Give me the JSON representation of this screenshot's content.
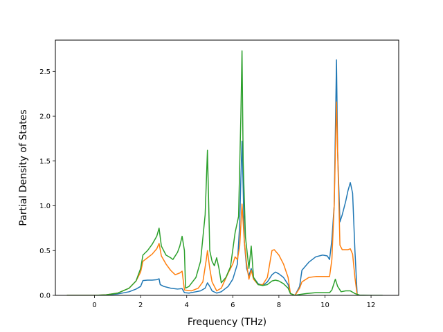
{
  "chart_data": {
    "type": "line",
    "title": "",
    "xlabel": "Frequency (THz)",
    "ylabel": "Partial Density of States",
    "xlim": [
      -1.7,
      13.2
    ],
    "ylim": [
      0,
      2.85
    ],
    "xticks": [
      0,
      2,
      4,
      6,
      8,
      10,
      12
    ],
    "xtick_labels": [
      "0",
      "2",
      "4",
      "6",
      "8",
      "10",
      "12"
    ],
    "yticks": [
      0.0,
      0.5,
      1.0,
      1.5,
      2.0,
      2.5
    ],
    "ytick_labels": [
      "0.0",
      "0.5",
      "1.0",
      "1.5",
      "2.0",
      "2.5"
    ],
    "grid": false,
    "legend": "none",
    "series": [
      {
        "color": "#1f77b4",
        "points": [
          [
            -1.2,
            0
          ],
          [
            0,
            0
          ],
          [
            0.5,
            0.004
          ],
          [
            1,
            0.015
          ],
          [
            1.5,
            0.04
          ],
          [
            1.8,
            0.07
          ],
          [
            2.0,
            0.1
          ],
          [
            2.1,
            0.165
          ],
          [
            2.3,
            0.17
          ],
          [
            2.5,
            0.17
          ],
          [
            2.7,
            0.175
          ],
          [
            2.8,
            0.185
          ],
          [
            2.85,
            0.12
          ],
          [
            3.0,
            0.1
          ],
          [
            3.3,
            0.08
          ],
          [
            3.6,
            0.07
          ],
          [
            3.8,
            0.075
          ],
          [
            3.9,
            0.03
          ],
          [
            4.1,
            0.025
          ],
          [
            4.4,
            0.04
          ],
          [
            4.6,
            0.05
          ],
          [
            4.8,
            0.08
          ],
          [
            4.9,
            0.14
          ],
          [
            5.0,
            0.1
          ],
          [
            5.1,
            0.05
          ],
          [
            5.3,
            0.025
          ],
          [
            5.5,
            0.04
          ],
          [
            5.8,
            0.1
          ],
          [
            6.0,
            0.18
          ],
          [
            6.2,
            0.35
          ],
          [
            6.3,
            0.8
          ],
          [
            6.35,
            1.3
          ],
          [
            6.4,
            1.72
          ],
          [
            6.45,
            1.2
          ],
          [
            6.5,
            0.6
          ],
          [
            6.6,
            0.3
          ],
          [
            6.7,
            0.22
          ],
          [
            6.8,
            0.3
          ],
          [
            6.9,
            0.2
          ],
          [
            7.1,
            0.13
          ],
          [
            7.3,
            0.11
          ],
          [
            7.5,
            0.15
          ],
          [
            7.7,
            0.23
          ],
          [
            7.85,
            0.26
          ],
          [
            8.0,
            0.24
          ],
          [
            8.2,
            0.2
          ],
          [
            8.4,
            0.12
          ],
          [
            8.5,
            0.02
          ],
          [
            8.7,
            0
          ],
          [
            8.9,
            0.1
          ],
          [
            9.0,
            0.28
          ],
          [
            9.3,
            0.37
          ],
          [
            9.6,
            0.43
          ],
          [
            9.9,
            0.45
          ],
          [
            10.1,
            0.44
          ],
          [
            10.2,
            0.4
          ],
          [
            10.3,
            0.62
          ],
          [
            10.4,
            1.0
          ],
          [
            10.45,
            1.8
          ],
          [
            10.5,
            2.63
          ],
          [
            10.55,
            1.6
          ],
          [
            10.65,
            0.82
          ],
          [
            10.75,
            0.9
          ],
          [
            10.9,
            1.05
          ],
          [
            11.0,
            1.17
          ],
          [
            11.1,
            1.26
          ],
          [
            11.2,
            1.14
          ],
          [
            11.3,
            0.5
          ],
          [
            11.4,
            0
          ],
          [
            11.5,
            0
          ]
        ]
      },
      {
        "color": "#ff7f0e",
        "points": [
          [
            -1.2,
            0
          ],
          [
            0,
            0
          ],
          [
            0.5,
            0.006
          ],
          [
            1,
            0.025
          ],
          [
            1.5,
            0.08
          ],
          [
            1.8,
            0.16
          ],
          [
            2.0,
            0.26
          ],
          [
            2.1,
            0.38
          ],
          [
            2.3,
            0.42
          ],
          [
            2.5,
            0.46
          ],
          [
            2.7,
            0.52
          ],
          [
            2.8,
            0.58
          ],
          [
            2.9,
            0.44
          ],
          [
            3.1,
            0.35
          ],
          [
            3.3,
            0.28
          ],
          [
            3.5,
            0.23
          ],
          [
            3.7,
            0.25
          ],
          [
            3.8,
            0.27
          ],
          [
            3.9,
            0.06
          ],
          [
            4.2,
            0.05
          ],
          [
            4.5,
            0.08
          ],
          [
            4.7,
            0.15
          ],
          [
            4.85,
            0.4
          ],
          [
            4.9,
            0.5
          ],
          [
            5.0,
            0.3
          ],
          [
            5.1,
            0.15
          ],
          [
            5.3,
            0.05
          ],
          [
            5.5,
            0.08
          ],
          [
            5.8,
            0.25
          ],
          [
            6.0,
            0.35
          ],
          [
            6.1,
            0.43
          ],
          [
            6.2,
            0.4
          ],
          [
            6.3,
            0.55
          ],
          [
            6.4,
            1.02
          ],
          [
            6.5,
            0.6
          ],
          [
            6.6,
            0.35
          ],
          [
            6.7,
            0.18
          ],
          [
            6.8,
            0.28
          ],
          [
            6.9,
            0.18
          ],
          [
            7.1,
            0.12
          ],
          [
            7.3,
            0.12
          ],
          [
            7.5,
            0.2
          ],
          [
            7.7,
            0.5
          ],
          [
            7.8,
            0.51
          ],
          [
            8.0,
            0.45
          ],
          [
            8.2,
            0.35
          ],
          [
            8.4,
            0.2
          ],
          [
            8.5,
            0.02
          ],
          [
            8.7,
            0
          ],
          [
            8.9,
            0.08
          ],
          [
            9.0,
            0.15
          ],
          [
            9.3,
            0.2
          ],
          [
            9.6,
            0.21
          ],
          [
            9.9,
            0.21
          ],
          [
            10.2,
            0.21
          ],
          [
            10.3,
            0.4
          ],
          [
            10.4,
            1.0
          ],
          [
            10.5,
            2.16
          ],
          [
            10.55,
            1.6
          ],
          [
            10.65,
            0.56
          ],
          [
            10.75,
            0.51
          ],
          [
            10.9,
            0.51
          ],
          [
            11.0,
            0.51
          ],
          [
            11.1,
            0.52
          ],
          [
            11.2,
            0.46
          ],
          [
            11.3,
            0.2
          ],
          [
            11.4,
            0
          ],
          [
            11.5,
            0
          ]
        ]
      },
      {
        "color": "#2ca02c",
        "points": [
          [
            -1.2,
            0
          ],
          [
            0,
            0
          ],
          [
            0.5,
            0.006
          ],
          [
            1,
            0.025
          ],
          [
            1.5,
            0.08
          ],
          [
            1.8,
            0.16
          ],
          [
            2.0,
            0.3
          ],
          [
            2.1,
            0.45
          ],
          [
            2.3,
            0.5
          ],
          [
            2.5,
            0.57
          ],
          [
            2.7,
            0.66
          ],
          [
            2.8,
            0.75
          ],
          [
            2.9,
            0.55
          ],
          [
            3.1,
            0.45
          ],
          [
            3.3,
            0.42
          ],
          [
            3.4,
            0.4
          ],
          [
            3.6,
            0.48
          ],
          [
            3.7,
            0.55
          ],
          [
            3.8,
            0.66
          ],
          [
            3.9,
            0.5
          ],
          [
            3.95,
            0.08
          ],
          [
            4.1,
            0.1
          ],
          [
            4.4,
            0.2
          ],
          [
            4.6,
            0.38
          ],
          [
            4.8,
            0.9
          ],
          [
            4.9,
            1.62
          ],
          [
            5.0,
            0.5
          ],
          [
            5.1,
            0.38
          ],
          [
            5.2,
            0.33
          ],
          [
            5.3,
            0.42
          ],
          [
            5.4,
            0.3
          ],
          [
            5.5,
            0.14
          ],
          [
            5.7,
            0.2
          ],
          [
            5.9,
            0.32
          ],
          [
            6.1,
            0.7
          ],
          [
            6.25,
            0.88
          ],
          [
            6.35,
            2.0
          ],
          [
            6.4,
            2.73
          ],
          [
            6.45,
            1.5
          ],
          [
            6.55,
            0.65
          ],
          [
            6.7,
            0.3
          ],
          [
            6.8,
            0.55
          ],
          [
            6.9,
            0.2
          ],
          [
            7.1,
            0.12
          ],
          [
            7.3,
            0.11
          ],
          [
            7.5,
            0.12
          ],
          [
            7.7,
            0.16
          ],
          [
            7.85,
            0.17
          ],
          [
            8.0,
            0.16
          ],
          [
            8.2,
            0.13
          ],
          [
            8.4,
            0.08
          ],
          [
            8.5,
            0.02
          ],
          [
            8.7,
            0
          ],
          [
            8.9,
            0.01
          ],
          [
            9.2,
            0.02
          ],
          [
            9.6,
            0.03
          ],
          [
            9.9,
            0.03
          ],
          [
            10.2,
            0.03
          ],
          [
            10.3,
            0.06
          ],
          [
            10.4,
            0.14
          ],
          [
            10.45,
            0.18
          ],
          [
            10.55,
            0.1
          ],
          [
            10.7,
            0.04
          ],
          [
            10.9,
            0.05
          ],
          [
            11.1,
            0.05
          ],
          [
            11.3,
            0.02
          ],
          [
            11.5,
            0.003
          ],
          [
            12.0,
            0
          ],
          [
            12.5,
            0
          ]
        ]
      }
    ]
  }
}
